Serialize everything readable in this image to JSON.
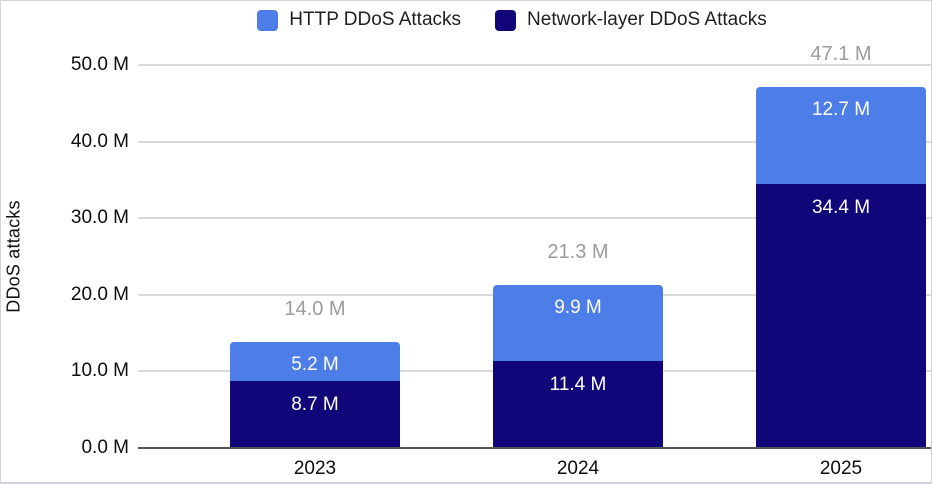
{
  "colors": {
    "http_blue": "#4d7ee8",
    "network_navy": "#10067a",
    "gridline": "#d9d9d9",
    "axis_line": "#565656",
    "total_label_gray": "#9b9b9b",
    "segment_label_white": "#ffffff",
    "text_dark": "#1f1f1f"
  },
  "legend": [
    {
      "label": "HTTP DDoS Attacks",
      "color": "#4d7ee8"
    },
    {
      "label": "Network-layer DDoS Attacks",
      "color": "#10067a"
    }
  ],
  "chart_data": {
    "type": "bar",
    "stacked": true,
    "categories": [
      "2023",
      "2024",
      "2025"
    ],
    "series": [
      {
        "name": "Network-layer DDoS Attacks",
        "values": [
          8.7,
          11.4,
          34.4
        ],
        "labels": [
          "8.7 M",
          "11.4 M",
          "34.4 M"
        ],
        "color": "#10067a",
        "stack_order": "bottom"
      },
      {
        "name": "HTTP DDoS Attacks",
        "values": [
          5.2,
          9.9,
          12.7
        ],
        "labels": [
          "5.2 M",
          "9.9 M",
          "12.7 M"
        ],
        "color": "#4d7ee8",
        "stack_order": "top"
      }
    ],
    "totals": [
      14.0,
      21.3,
      47.1
    ],
    "total_labels": [
      "14.0 M",
      "21.3 M",
      "47.1 M"
    ],
    "title": "",
    "xlabel": "",
    "ylabel": "DDoS attacks",
    "unit": "M",
    "ylim": [
      0,
      50
    ],
    "yticks": [
      0,
      10,
      20,
      30,
      40,
      50
    ],
    "ytick_labels": [
      "0.0 M",
      "10.0 M",
      "20.0 M",
      "30.0 M",
      "40.0 M",
      "50.0 M"
    ],
    "grid": true,
    "legend_position": "top"
  }
}
